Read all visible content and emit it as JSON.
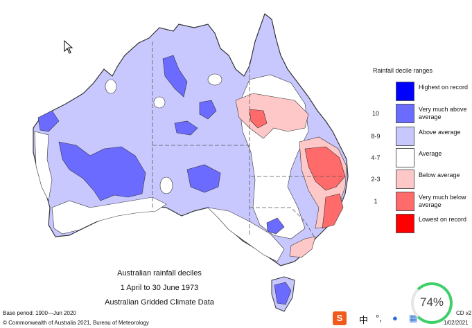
{
  "legend": {
    "title": "Rainfall decile ranges",
    "items": [
      {
        "range": "",
        "label": "Highest on record",
        "color": "#0000ff"
      },
      {
        "range": "10",
        "label": "Very much above average",
        "color": "#6b6bff"
      },
      {
        "range": "8-9",
        "label": "Above average",
        "color": "#c8c8ff"
      },
      {
        "range": "4-7",
        "label": "Average",
        "color": "#ffffff"
      },
      {
        "range": "2-3",
        "label": "Below average",
        "color": "#ffc8c8"
      },
      {
        "range": "1",
        "label": "Very much below average",
        "color": "#ff6b6b"
      },
      {
        "range": "",
        "label": "Lowest on record",
        "color": "#ff0000"
      }
    ]
  },
  "caption": {
    "line1": "Australian rainfall deciles",
    "line2": "1 April to 30 June 1973",
    "line3": "Australian Gridded Climate Data"
  },
  "footer": {
    "base_period": "Base period: 1900—Jun 2020",
    "copyright": "© Commonwealth of Australia 2021, Bureau of Meteorology",
    "version_fragment": "CD v2",
    "date_fragment": "1/02/2021"
  },
  "taskbar": {
    "ime_char": "中",
    "punct": "°,"
  },
  "battery_badge": {
    "percent": "74%"
  },
  "colors": {
    "outline": "#333333",
    "land_blue": "#c8c8ff",
    "mid_blue": "#6b6bff",
    "pink": "#ffc8c8",
    "red": "#ff6b6b"
  }
}
